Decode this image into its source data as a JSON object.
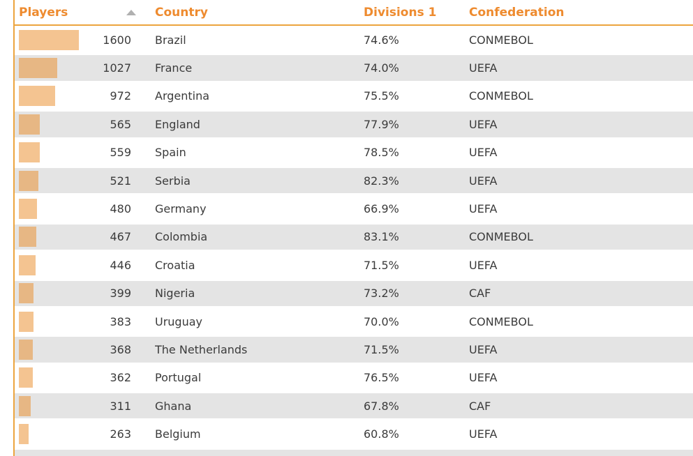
{
  "table": {
    "columns": [
      {
        "key": "players",
        "label": "Players",
        "sort_indicator": "up"
      },
      {
        "key": "country",
        "label": "Country"
      },
      {
        "key": "divisions_1",
        "label": "Divisions 1"
      },
      {
        "key": "confederation",
        "label": "Confederation"
      }
    ],
    "rows": [
      {
        "players": 1600,
        "country": "Brazil",
        "divisions_1": "74.6%",
        "confederation": "CONMEBOL"
      },
      {
        "players": 1027,
        "country": "France",
        "divisions_1": "74.0%",
        "confederation": "UEFA"
      },
      {
        "players": 972,
        "country": "Argentina",
        "divisions_1": "75.5%",
        "confederation": "CONMEBOL"
      },
      {
        "players": 565,
        "country": "England",
        "divisions_1": "77.9%",
        "confederation": "UEFA"
      },
      {
        "players": 559,
        "country": "Spain",
        "divisions_1": "78.5%",
        "confederation": "UEFA"
      },
      {
        "players": 521,
        "country": "Serbia",
        "divisions_1": "82.3%",
        "confederation": "UEFA"
      },
      {
        "players": 480,
        "country": "Germany",
        "divisions_1": "66.9%",
        "confederation": "UEFA"
      },
      {
        "players": 467,
        "country": "Colombia",
        "divisions_1": "83.1%",
        "confederation": "CONMEBOL"
      },
      {
        "players": 446,
        "country": "Croatia",
        "divisions_1": "71.5%",
        "confederation": "UEFA"
      },
      {
        "players": 399,
        "country": "Nigeria",
        "divisions_1": "73.2%",
        "confederation": "CAF"
      },
      {
        "players": 383,
        "country": "Uruguay",
        "divisions_1": "70.0%",
        "confederation": "CONMEBOL"
      },
      {
        "players": 368,
        "country": "The Netherlands",
        "divisions_1": "71.5%",
        "confederation": "UEFA"
      },
      {
        "players": 362,
        "country": "Portugal",
        "divisions_1": "76.5%",
        "confederation": "UEFA"
      },
      {
        "players": 311,
        "country": "Ghana",
        "divisions_1": "67.8%",
        "confederation": "CAF"
      },
      {
        "players": 263,
        "country": "Belgium",
        "divisions_1": "60.8%",
        "confederation": "UEFA"
      }
    ]
  },
  "colors": {
    "header_text": "#ee8b2f",
    "table_border": "#eca43e",
    "bar_fill": "rgba(233,138,35,0.5)",
    "row_alt_background": "#e4e4e4",
    "body_text": "#3b3b3b",
    "sort_arrow": "#b0b0b0"
  },
  "chart_data": {
    "type": "table",
    "title": "",
    "columns": [
      "Players",
      "Country",
      "Divisions 1",
      "Confederation"
    ],
    "sorted_by": "Players",
    "sort_order": "descending",
    "embedded_bars": {
      "column": "Players",
      "max_value": 1600
    },
    "rows": [
      [
        1600,
        "Brazil",
        "74.6%",
        "CONMEBOL"
      ],
      [
        1027,
        "France",
        "74.0%",
        "UEFA"
      ],
      [
        972,
        "Argentina",
        "75.5%",
        "CONMEBOL"
      ],
      [
        565,
        "England",
        "77.9%",
        "UEFA"
      ],
      [
        559,
        "Spain",
        "78.5%",
        "UEFA"
      ],
      [
        521,
        "Serbia",
        "82.3%",
        "UEFA"
      ],
      [
        480,
        "Germany",
        "66.9%",
        "UEFA"
      ],
      [
        467,
        "Colombia",
        "83.1%",
        "CONMEBOL"
      ],
      [
        446,
        "Croatia",
        "71.5%",
        "UEFA"
      ],
      [
        399,
        "Nigeria",
        "73.2%",
        "CAF"
      ],
      [
        383,
        "Uruguay",
        "70.0%",
        "CONMEBOL"
      ],
      [
        368,
        "The Netherlands",
        "71.5%",
        "UEFA"
      ],
      [
        362,
        "Portugal",
        "76.5%",
        "UEFA"
      ],
      [
        311,
        "Ghana",
        "67.8%",
        "CAF"
      ],
      [
        263,
        "Belgium",
        "60.8%",
        "UEFA"
      ]
    ]
  }
}
